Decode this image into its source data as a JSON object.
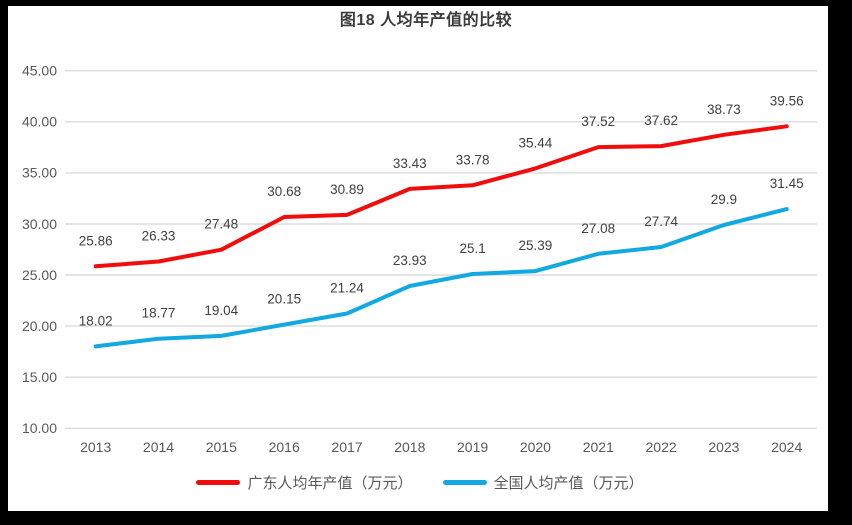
{
  "chart": {
    "title": "图18 人均年产值的比较",
    "legend": [
      {
        "label": "广东人均年产值（万元）",
        "color": "#f20d0d"
      },
      {
        "label": "全国人均产值（万元）",
        "color": "#12a9e0"
      }
    ]
  },
  "chart_data": {
    "type": "line",
    "title": "图18 人均年产值的比较",
    "categories": [
      "2013",
      "2014",
      "2015",
      "2016",
      "2017",
      "2018",
      "2019",
      "2020",
      "2021",
      "2022",
      "2023",
      "2024"
    ],
    "series": [
      {
        "name": "广东人均年产值（万元）",
        "color": "#f20d0d",
        "values": [
          25.86,
          26.33,
          27.48,
          30.68,
          30.89,
          33.43,
          33.78,
          35.44,
          37.52,
          37.62,
          38.73,
          39.56
        ]
      },
      {
        "name": "全国人均产值（万元）",
        "color": "#12a9e0",
        "values": [
          18.02,
          18.77,
          19.04,
          20.15,
          21.24,
          23.93,
          25.1,
          25.39,
          27.08,
          27.74,
          29.9,
          31.45
        ]
      }
    ],
    "xlabel": "",
    "ylabel": "",
    "ylim": [
      10,
      45
    ],
    "y_ticks": [
      45,
      40,
      35,
      30,
      25,
      20,
      15,
      10
    ],
    "y_tick_labels": [
      "45.00",
      "40.00",
      "35.00",
      "30.00",
      "25.00",
      "20.00",
      "15.00",
      "10.00"
    ],
    "grid": true,
    "legend_position": "bottom",
    "data_labels": "above",
    "colors": {
      "gridline": "#dcdcdc",
      "axis_text": "#595959",
      "data_label_text": "#404040",
      "title_text": "#3b3b3b",
      "plot_background": "#ffffff",
      "frame": "#000000"
    }
  }
}
